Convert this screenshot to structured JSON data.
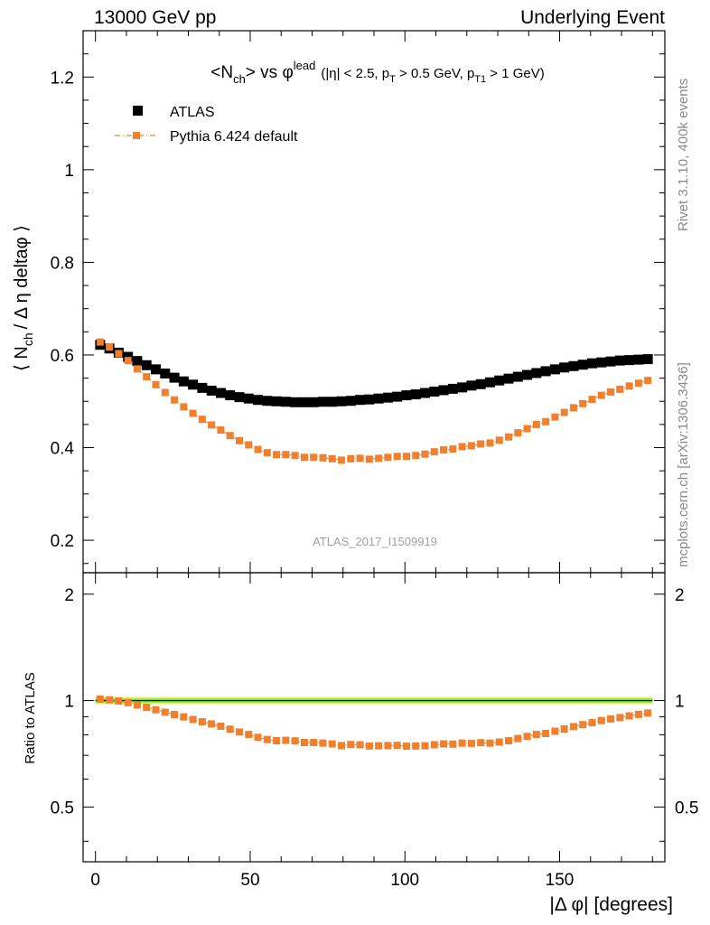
{
  "header": {
    "left_label": "13000 GeV pp",
    "right_label": "Underlying Event"
  },
  "side_labels": {
    "rivet": "Rivet 3.1.10,  400k events",
    "mcplots": "mcplots.cern.ch [arXiv:1306.3436]"
  },
  "chart_data": {
    "type": "scatter",
    "title": "<N_ch> vs φ^lead (|η| < 2.5, p_T > 0.5 GeV, p_T1 > 1 GeV)",
    "title_parts": {
      "main": "<N",
      "main_sub": "ch",
      "main_rest": "> vs φ",
      "main_sup": "lead",
      "cuts_a": "(|η| < 2.5, p",
      "cuts_a_sub": "T",
      "cuts_b": " > 0.5 GeV, p",
      "cuts_b_sub": "T1",
      "cuts_c": " > 1 GeV)"
    },
    "watermark": "ATLAS_2017_I1509919",
    "xlabel": "|Δ φ| [degrees]",
    "ylabel": "⟨ N_ch / Δ η deltaφ ⟩",
    "ylabel_parts": {
      "open": "⟨ N",
      "sub": "ch",
      "rest": "/ Δ η deltaφ ⟩"
    },
    "ratio_ylabel": "Ratio to ATLAS",
    "xlim": [
      -4,
      184
    ],
    "ylim": [
      0.13,
      1.3
    ],
    "ratio_ylim": [
      0.35,
      2.3
    ],
    "ratio_scale": "log",
    "x_ticks": [
      0,
      50,
      100,
      150
    ],
    "y_ticks": [
      0.2,
      0.4,
      0.6,
      0.8,
      1,
      1.2
    ],
    "ratio_ticks": [
      0.5,
      1,
      2
    ],
    "legend_position": "top-left",
    "colors": {
      "atlas": "#000000",
      "pythia": "#f07f2e",
      "band_outer": "#e6ee66",
      "band_inner": "#6fdc4a"
    },
    "series": [
      {
        "name": "ATLAS",
        "x": [
          1.5,
          4.5,
          7.5,
          10.5,
          13.5,
          16.5,
          19.5,
          22.5,
          25.5,
          28.5,
          31.5,
          34.5,
          37.5,
          40.5,
          43.5,
          46.5,
          49.5,
          52.5,
          55.5,
          58.5,
          61.5,
          64.5,
          67.5,
          70.5,
          73.5,
          76.5,
          79.5,
          82.5,
          85.5,
          88.5,
          91.5,
          94.5,
          97.5,
          100.5,
          103.5,
          106.5,
          109.5,
          112.5,
          115.5,
          118.5,
          121.5,
          124.5,
          127.5,
          130.5,
          133.5,
          136.5,
          139.5,
          142.5,
          145.5,
          148.5,
          151.5,
          154.5,
          157.5,
          160.5,
          163.5,
          166.5,
          169.5,
          172.5,
          175.5,
          178.5
        ],
        "values": [
          0.622,
          0.614,
          0.605,
          0.596,
          0.587,
          0.578,
          0.569,
          0.56,
          0.551,
          0.543,
          0.536,
          0.529,
          0.523,
          0.518,
          0.513,
          0.509,
          0.506,
          0.503,
          0.501,
          0.5,
          0.499,
          0.498,
          0.498,
          0.498,
          0.499,
          0.499,
          0.5,
          0.501,
          0.503,
          0.504,
          0.506,
          0.508,
          0.51,
          0.513,
          0.515,
          0.518,
          0.521,
          0.524,
          0.527,
          0.53,
          0.534,
          0.537,
          0.541,
          0.545,
          0.549,
          0.553,
          0.557,
          0.561,
          0.565,
          0.569,
          0.573,
          0.576,
          0.579,
          0.582,
          0.584,
          0.586,
          0.588,
          0.589,
          0.59,
          0.591
        ]
      },
      {
        "name": "Pythia 6.424 default",
        "x": [
          1.5,
          4.5,
          7.5,
          10.5,
          13.5,
          16.5,
          19.5,
          22.5,
          25.5,
          28.5,
          31.5,
          34.5,
          37.5,
          40.5,
          43.5,
          46.5,
          49.5,
          52.5,
          55.5,
          58.5,
          61.5,
          64.5,
          67.5,
          70.5,
          73.5,
          76.5,
          79.5,
          82.5,
          85.5,
          88.5,
          91.5,
          94.5,
          97.5,
          100.5,
          103.5,
          106.5,
          109.5,
          112.5,
          115.5,
          118.5,
          121.5,
          124.5,
          127.5,
          130.5,
          133.5,
          136.5,
          139.5,
          142.5,
          145.5,
          148.5,
          151.5,
          154.5,
          157.5,
          160.5,
          163.5,
          166.5,
          169.5,
          172.5,
          175.5,
          178.5
        ],
        "values": [
          0.628,
          0.617,
          0.603,
          0.588,
          0.57,
          0.553,
          0.536,
          0.519,
          0.503,
          0.488,
          0.474,
          0.461,
          0.449,
          0.438,
          0.426,
          0.415,
          0.406,
          0.396,
          0.389,
          0.385,
          0.385,
          0.383,
          0.379,
          0.379,
          0.378,
          0.376,
          0.373,
          0.376,
          0.377,
          0.375,
          0.377,
          0.379,
          0.381,
          0.381,
          0.383,
          0.386,
          0.391,
          0.395,
          0.397,
          0.402,
          0.404,
          0.408,
          0.41,
          0.416,
          0.423,
          0.432,
          0.441,
          0.45,
          0.456,
          0.466,
          0.476,
          0.486,
          0.495,
          0.504,
          0.513,
          0.52,
          0.526,
          0.533,
          0.539,
          0.545
        ]
      }
    ],
    "ratio_series": [
      {
        "name": "Pythia 6.424 default",
        "values": [
          1.01,
          1.005,
          0.997,
          0.987,
          0.971,
          0.957,
          0.942,
          0.927,
          0.913,
          0.899,
          0.884,
          0.871,
          0.859,
          0.846,
          0.83,
          0.815,
          0.802,
          0.787,
          0.776,
          0.77,
          0.772,
          0.769,
          0.761,
          0.761,
          0.758,
          0.754,
          0.746,
          0.751,
          0.75,
          0.744,
          0.745,
          0.746,
          0.747,
          0.743,
          0.744,
          0.745,
          0.75,
          0.754,
          0.753,
          0.758,
          0.757,
          0.76,
          0.758,
          0.763,
          0.77,
          0.781,
          0.792,
          0.802,
          0.807,
          0.819,
          0.831,
          0.844,
          0.855,
          0.866,
          0.878,
          0.887,
          0.895,
          0.905,
          0.914,
          0.922
        ]
      }
    ]
  }
}
